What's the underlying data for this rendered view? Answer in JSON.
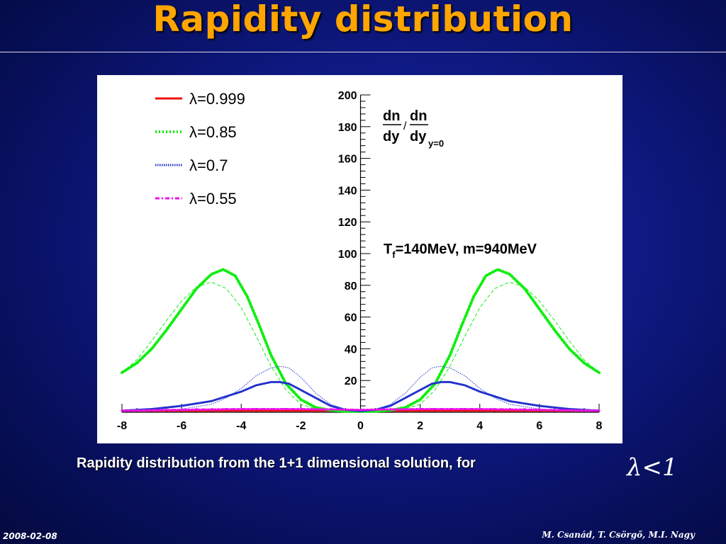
{
  "slide": {
    "title": "Rapidity distribution",
    "caption": "Rapidity distribution from the 1+1 dimensional solution, for",
    "formula": "λ<1",
    "footer_date": "2008-02-08",
    "footer_authors": "M. Csanád, T. Csörgő, M.I. Nagy"
  },
  "colors": {
    "accent_title": "#ffa500",
    "series_0999": "#ee1111",
    "series_085": "#11ee11",
    "series_07": "#2233cc",
    "series_055": "#ee11ee"
  },
  "chart_data": {
    "type": "line",
    "xlim": [
      -8,
      8
    ],
    "ylim": [
      0,
      200
    ],
    "x_ticks": [
      -8,
      -6,
      -4,
      -2,
      0,
      2,
      4,
      6,
      8
    ],
    "y_ticks": [
      20,
      40,
      60,
      80,
      100,
      120,
      140,
      160,
      180,
      200
    ],
    "grid": false,
    "legend_position": "top-left",
    "ylabel_num": "dn",
    "ylabel_den": "dy",
    "ylabel_num2": "dn",
    "ylabel_den2": "dy",
    "ylabel_sub": "y=0",
    "annotation_main": "T",
    "annotation_sub": "f",
    "annotation_rest": "=140MeV, m=940MeV",
    "series": [
      {
        "name": "λ=0.999",
        "style": "solid",
        "x": [
          -8,
          -4,
          0,
          4,
          8
        ],
        "values": [
          1,
          1,
          1,
          1,
          1
        ],
        "fit_values": [
          1,
          1,
          1,
          1,
          1
        ]
      },
      {
        "name": "λ=0.85",
        "style": "dotted",
        "x": [
          -8,
          -7.5,
          -7,
          -6.5,
          -6,
          -5.5,
          -5,
          -4.6,
          -4.2,
          -3.8,
          -3.4,
          -3,
          -2.5,
          -2,
          -1.5,
          -1,
          -0.5,
          0,
          0.5,
          1,
          1.5,
          2,
          2.5,
          3,
          3.4,
          3.8,
          4.2,
          4.6,
          5,
          5.5,
          6,
          6.5,
          7,
          7.5,
          8
        ],
        "values": [
          25,
          31,
          40,
          52,
          65,
          78,
          87,
          90,
          86,
          73,
          55,
          36,
          18,
          8,
          3,
          1.2,
          0.6,
          0.5,
          0.6,
          1.2,
          3,
          8,
          18,
          36,
          55,
          73,
          86,
          90,
          87,
          78,
          65,
          52,
          40,
          31,
          25
        ],
        "fit_x": [
          -8,
          -7.5,
          -7,
          -6.5,
          -6,
          -5.5,
          -5,
          -4.5,
          -4,
          -3.5,
          -3,
          -2.5,
          -2,
          -1.5,
          -1,
          -0.5,
          0,
          0.5,
          1,
          1.5,
          2,
          2.5,
          3,
          3.5,
          4,
          4.5,
          5,
          5.5,
          6,
          6.5,
          7,
          7.5,
          8
        ],
        "fit_values": [
          25,
          33,
          45,
          58,
          70,
          79,
          82,
          78,
          66,
          48,
          29,
          14,
          5,
          2,
          1,
          0.6,
          0.5,
          0.6,
          1,
          2,
          5,
          14,
          29,
          48,
          66,
          78,
          82,
          79,
          70,
          58,
          45,
          33,
          25
        ]
      },
      {
        "name": "λ=0.7",
        "style": "dense-dotted",
        "x": [
          -8,
          -7,
          -6,
          -5,
          -4.5,
          -4,
          -3.5,
          -3,
          -2.7,
          -2.4,
          -2,
          -1.5,
          -1,
          -0.5,
          0,
          0.5,
          1,
          1.5,
          2,
          2.4,
          2.7,
          3,
          3.5,
          4,
          4.5,
          5,
          6,
          7,
          8
        ],
        "values": [
          1,
          2,
          4,
          7,
          10,
          13,
          17,
          19,
          19,
          18,
          14,
          9,
          4,
          1.5,
          0.8,
          1.5,
          4,
          9,
          14,
          18,
          19,
          19,
          17,
          13,
          10,
          7,
          4,
          2,
          1
        ],
        "fit_x": [
          -8,
          -7,
          -6,
          -5,
          -4.5,
          -4,
          -3.5,
          -3,
          -2.7,
          -2.4,
          -2,
          -1.5,
          -1,
          -0.5,
          0,
          0.5,
          1,
          1.5,
          2,
          2.4,
          2.7,
          3,
          3.5,
          4,
          4.5,
          5,
          6,
          7,
          8
        ],
        "fit_values": [
          0.5,
          1,
          2,
          5,
          9,
          15,
          23,
          28,
          29,
          28,
          22,
          12,
          5,
          1.8,
          0.8,
          1.8,
          5,
          12,
          22,
          28,
          29,
          28,
          23,
          15,
          9,
          5,
          2,
          1,
          0.5
        ]
      },
      {
        "name": "λ=0.55",
        "style": "dash-dot",
        "x": [
          -8,
          -6,
          -4,
          -2,
          0,
          2,
          4,
          6,
          8
        ],
        "values": [
          1,
          1.5,
          2,
          2,
          1.5,
          2,
          2,
          1.5,
          1
        ],
        "fit_values": [
          1,
          1.5,
          2,
          2,
          1.5,
          2,
          2,
          1.5,
          1
        ]
      }
    ]
  }
}
